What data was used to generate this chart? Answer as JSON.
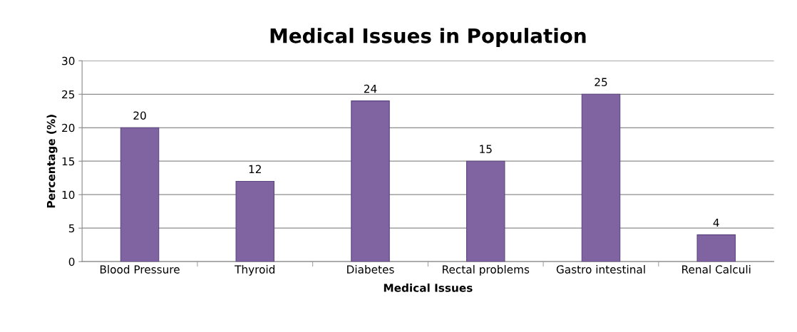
{
  "chart_data": {
    "type": "bar",
    "title": "Medical Issues in Population",
    "xlabel": "Medical Issues",
    "ylabel": "Percentage (%)",
    "categories": [
      "Blood Pressure",
      "Thyroid",
      "Diabetes",
      "Rectal problems",
      "Gastro intestinal",
      "Renal Calculi"
    ],
    "values": [
      20,
      12,
      24,
      15,
      25,
      4
    ],
    "color": "#8064a2",
    "ylim": [
      0,
      30
    ],
    "yticks": [
      0,
      5,
      10,
      15,
      20,
      25,
      30
    ],
    "grid": "y",
    "data_labels": true,
    "legend": false
  }
}
